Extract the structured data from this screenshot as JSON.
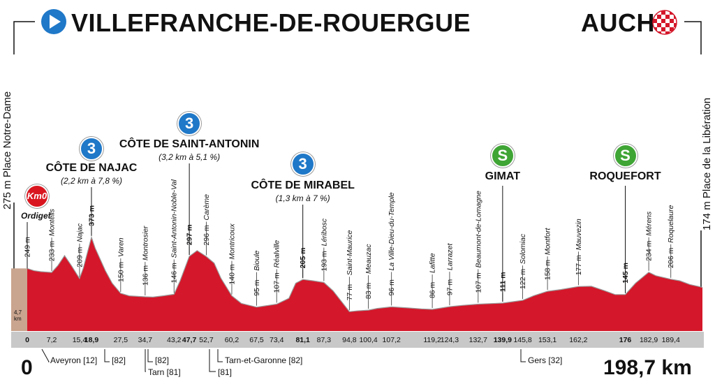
{
  "chart_data": {
    "type": "area",
    "title": "",
    "start": {
      "town": "VILLEFRANCHE-DE-ROUERGUE",
      "altitude_label": "275 m",
      "place": "Place Notre-Dame",
      "km": "0"
    },
    "finish": {
      "town": "AUCH",
      "altitude_label": "174 m",
      "place": "Place de la Libération",
      "km": "198,7 km"
    },
    "km0": {
      "badge": "Km0",
      "name": "Ordiget",
      "offset_label": "4,7\nkm"
    },
    "xlim": [
      0,
      198.7
    ],
    "ylim": [
      0,
      400
    ],
    "profile": [
      [
        0,
        249
      ],
      [
        2,
        240
      ],
      [
        4,
        236
      ],
      [
        7.2,
        233
      ],
      [
        9,
        260
      ],
      [
        11,
        300
      ],
      [
        13,
        260
      ],
      [
        15.4,
        209
      ],
      [
        16.5,
        250
      ],
      [
        18.9,
        373
      ],
      [
        20,
        330
      ],
      [
        23,
        240
      ],
      [
        25,
        190
      ],
      [
        27.5,
        150
      ],
      [
        30,
        140
      ],
      [
        34.7,
        136
      ],
      [
        37,
        135
      ],
      [
        40,
        140
      ],
      [
        43.2,
        146
      ],
      [
        45,
        200
      ],
      [
        47.7,
        297
      ],
      [
        50,
        320
      ],
      [
        52.7,
        296
      ],
      [
        55,
        270
      ],
      [
        57,
        210
      ],
      [
        60.2,
        140
      ],
      [
        63,
        110
      ],
      [
        67.5,
        95
      ],
      [
        70,
        100
      ],
      [
        73.4,
        107
      ],
      [
        77,
        130
      ],
      [
        79,
        190
      ],
      [
        81.1,
        205
      ],
      [
        84,
        200
      ],
      [
        87.3,
        193
      ],
      [
        90,
        160
      ],
      [
        94.8,
        77
      ],
      [
        97,
        80
      ],
      [
        100.4,
        83
      ],
      [
        103,
        90
      ],
      [
        107.2,
        96
      ],
      [
        112,
        92
      ],
      [
        116,
        88
      ],
      [
        119.2,
        86
      ],
      [
        124.3,
        97
      ],
      [
        128,
        102
      ],
      [
        132.7,
        107
      ],
      [
        136,
        109
      ],
      [
        139.9,
        111
      ],
      [
        142,
        115
      ],
      [
        145.8,
        122
      ],
      [
        149,
        140
      ],
      [
        153.1,
        158
      ],
      [
        157,
        165
      ],
      [
        162.2,
        177
      ],
      [
        166,
        178
      ],
      [
        170,
        160
      ],
      [
        173,
        145
      ],
      [
        176,
        145
      ],
      [
        179,
        190
      ],
      [
        182.9,
        234
      ],
      [
        185,
        220
      ],
      [
        189.4,
        206
      ],
      [
        192,
        200
      ],
      [
        195,
        185
      ],
      [
        198.7,
        174
      ]
    ],
    "altitude_labels": [
      {
        "km": 0,
        "label": "249 m",
        "bold": false
      },
      {
        "km": 7.2,
        "label": "233 m",
        "bold": false
      },
      {
        "km": 15.4,
        "label": "209 m",
        "bold": false
      },
      {
        "km": 18.9,
        "label": "373 m",
        "bold": true
      },
      {
        "km": 27.5,
        "label": "150 m",
        "bold": false
      },
      {
        "km": 34.7,
        "label": "136 m",
        "bold": false
      },
      {
        "km": 43.2,
        "label": "146 m",
        "bold": false
      },
      {
        "km": 47.7,
        "label": "297 m",
        "bold": true
      },
      {
        "km": 52.7,
        "label": "296 m",
        "bold": false
      },
      {
        "km": 60.2,
        "label": "140 m",
        "bold": false
      },
      {
        "km": 67.5,
        "label": "95 m",
        "bold": false
      },
      {
        "km": 73.4,
        "label": "107 m",
        "bold": false
      },
      {
        "km": 81.1,
        "label": "205 m",
        "bold": true
      },
      {
        "km": 87.3,
        "label": "193 m",
        "bold": false
      },
      {
        "km": 94.8,
        "label": "77 m",
        "bold": false
      },
      {
        "km": 100.4,
        "label": "83 m",
        "bold": false
      },
      {
        "km": 107.2,
        "label": "96 m",
        "bold": false
      },
      {
        "km": 119.2,
        "label": "86 m",
        "bold": false
      },
      {
        "km": 124.3,
        "label": "97 m",
        "bold": false
      },
      {
        "km": 132.7,
        "label": "107 m",
        "bold": false
      },
      {
        "km": 139.9,
        "label": "111 m",
        "bold": true
      },
      {
        "km": 145.8,
        "label": "122 m",
        "bold": false
      },
      {
        "km": 153.1,
        "label": "158 m",
        "bold": false
      },
      {
        "km": 162.2,
        "label": "177 m",
        "bold": false
      },
      {
        "km": 176,
        "label": "145 m",
        "bold": true
      },
      {
        "km": 182.9,
        "label": "234 m",
        "bold": false
      },
      {
        "km": 189.4,
        "label": "206 m",
        "bold": false
      }
    ],
    "places": [
      {
        "km": 7.2,
        "name": "Monteils"
      },
      {
        "km": 15.4,
        "name": "Najac"
      },
      {
        "km": 27.5,
        "name": "Varen"
      },
      {
        "km": 34.7,
        "name": "Montrosier"
      },
      {
        "km": 43.2,
        "name": "Saint-Antonin-Noble-Val"
      },
      {
        "km": 52.7,
        "name": "Carème"
      },
      {
        "km": 60.2,
        "name": "Montricoux"
      },
      {
        "km": 67.5,
        "name": "Bioule"
      },
      {
        "km": 73.4,
        "name": "Réalville"
      },
      {
        "km": 87.3,
        "name": "Léribosc"
      },
      {
        "km": 94.8,
        "name": "Saint-Maurice"
      },
      {
        "km": 100.4,
        "name": "Meauzac"
      },
      {
        "km": 107.2,
        "name": "La Ville-Dieu-du-Temple"
      },
      {
        "km": 119.2,
        "name": "Lafitte"
      },
      {
        "km": 124.3,
        "name": "Larrazet"
      },
      {
        "km": 132.7,
        "name": "Beaumont-de-Lomagne"
      },
      {
        "km": 145.8,
        "name": "Solomiac"
      },
      {
        "km": 153.1,
        "name": "Montfort"
      },
      {
        "km": 162.2,
        "name": "Mauvezin"
      },
      {
        "km": 182.9,
        "name": "Mérens"
      },
      {
        "km": 189.4,
        "name": "Roquelaure"
      }
    ],
    "km_ticks": [
      {
        "km": 0,
        "label": "0",
        "bold": true
      },
      {
        "km": 7.2,
        "label": "7,2",
        "bold": false
      },
      {
        "km": 15.4,
        "label": "15,4",
        "bold": false
      },
      {
        "km": 18.9,
        "label": "18,9",
        "bold": true
      },
      {
        "km": 27.5,
        "label": "27,5",
        "bold": false
      },
      {
        "km": 34.7,
        "label": "34,7",
        "bold": false
      },
      {
        "km": 43.2,
        "label": "43,2",
        "bold": false
      },
      {
        "km": 47.7,
        "label": "47,7",
        "bold": true
      },
      {
        "km": 52.7,
        "label": "52,7",
        "bold": false
      },
      {
        "km": 60.2,
        "label": "60,2",
        "bold": false
      },
      {
        "km": 67.5,
        "label": "67,5",
        "bold": false
      },
      {
        "km": 73.4,
        "label": "73,4",
        "bold": false
      },
      {
        "km": 81.1,
        "label": "81,1",
        "bold": true
      },
      {
        "km": 87.3,
        "label": "87,3",
        "bold": false
      },
      {
        "km": 94.8,
        "label": "94,8",
        "bold": false
      },
      {
        "km": 100.4,
        "label": "100,4",
        "bold": false
      },
      {
        "km": 107.2,
        "label": "107,2",
        "bold": false
      },
      {
        "km": 119.2,
        "label": "119,2",
        "bold": false
      },
      {
        "km": 124.3,
        "label": "124,3",
        "bold": false
      },
      {
        "km": 132.7,
        "label": "132,7",
        "bold": false
      },
      {
        "km": 139.9,
        "label": "139,9",
        "bold": true
      },
      {
        "km": 145.8,
        "label": "145,8",
        "bold": false
      },
      {
        "km": 153.1,
        "label": "153,1",
        "bold": false
      },
      {
        "km": 162.2,
        "label": "162,2",
        "bold": false
      },
      {
        "km": 176,
        "label": "176",
        "bold": true
      },
      {
        "km": 182.9,
        "label": "182,9",
        "bold": false
      },
      {
        "km": 189.4,
        "label": "189,4",
        "bold": false
      }
    ],
    "climbs": [
      {
        "km": 18.9,
        "category": "3",
        "name": "CÔTE DE NAJAC",
        "detail": "(2,2 km à 7,8 %)"
      },
      {
        "km": 47.7,
        "category": "3",
        "name": "CÔTE DE SAINT-ANTONIN",
        "detail": "(3,2 km à 5,1 %)"
      },
      {
        "km": 81.1,
        "category": "3",
        "name": "CÔTE DE MIRABEL",
        "detail": "(1,3 km à 7 %)"
      }
    ],
    "sprints": [
      {
        "km": 139.9,
        "badge": "S",
        "name": "GIMAT"
      },
      {
        "km": 176,
        "badge": "S",
        "name": "ROQUEFORT"
      }
    ],
    "departments": [
      {
        "km": 11.5,
        "label": "Aveyron [12]"
      },
      {
        "km": 22,
        "label": "[82]"
      },
      {
        "km": 33.5,
        "label": "[82]"
      },
      {
        "km": 33.5,
        "label": "Tarn [81]"
      },
      {
        "km": 55.5,
        "label": "Tarn-et-Garonne [82]"
      },
      {
        "km": 55.5,
        "label": "[81]"
      },
      {
        "km": 141,
        "label": "Gers [32]"
      }
    ],
    "colors": {
      "fill": "#d4172a",
      "lead_in": "#c9a48e",
      "band": "#c8c8c8",
      "badge_climb": "#1f78c8",
      "badge_sprint": "#3fa535",
      "km0": "#d9161f"
    }
  }
}
